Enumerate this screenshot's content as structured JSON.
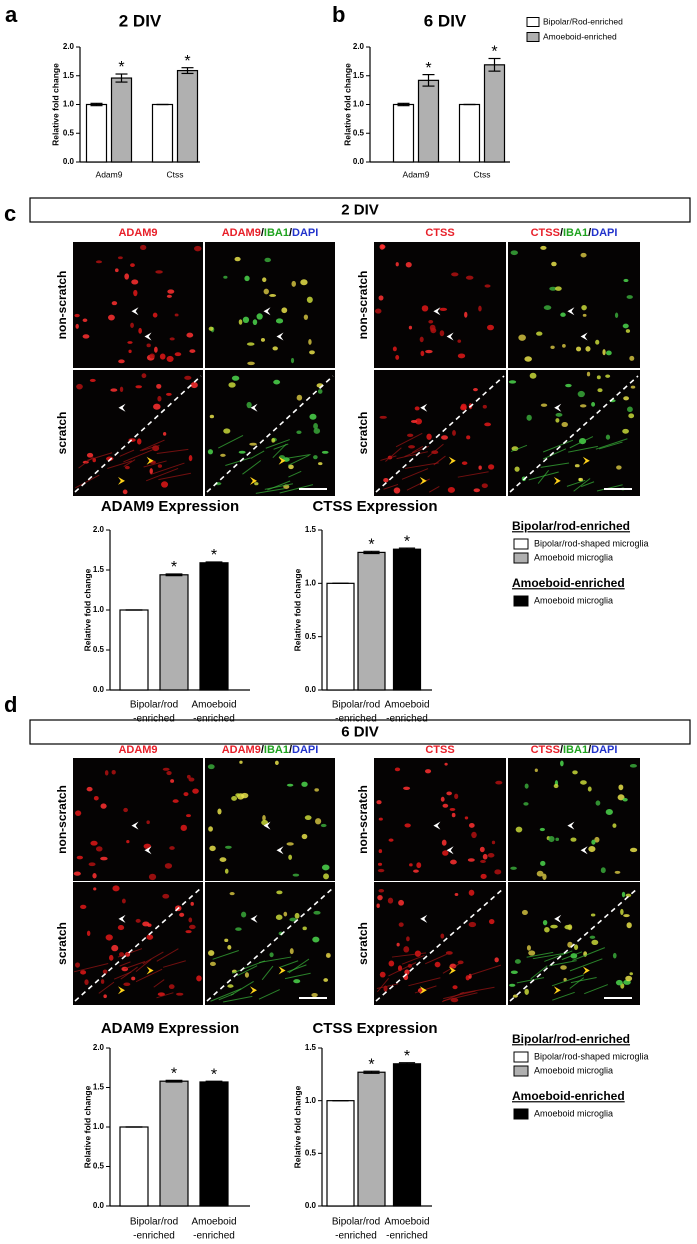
{
  "chart_data": [
    {
      "type": "bar",
      "letter": "a",
      "title": "2 DIV",
      "ylabel": "Relative fold change",
      "categories": [
        "Adam9",
        "Ctss"
      ],
      "series": [
        {
          "color": "#ffffff",
          "values": [
            1.0,
            1.0
          ],
          "errors": [
            0.02,
            0.0
          ],
          "significance": [
            null,
            null
          ]
        },
        {
          "color": "#b0b0b0",
          "values": [
            1.46,
            1.59
          ],
          "errors": [
            0.07,
            0.05
          ],
          "significance": [
            "*",
            "*"
          ]
        }
      ],
      "ylim": [
        0,
        2
      ],
      "yticks": [
        {
          "value": 0,
          "label": "0.0"
        },
        0.5,
        {
          "value": 1,
          "label": "1.0"
        },
        1.5,
        {
          "value": 2,
          "label": "2.0"
        }
      ]
    },
    {
      "type": "bar",
      "letter": "b",
      "title": "6 DIV",
      "ylabel": "Relative fold change",
      "categories": [
        "Adam9",
        "Ctss"
      ],
      "series": [
        {
          "name": "Bipolar/Rod-enriched",
          "color": "#ffffff",
          "values": [
            1.0,
            1.0
          ],
          "errors": [
            0.02,
            0.0
          ],
          "significance": [
            null,
            null
          ]
        },
        {
          "name": "Amoeboid-enriched",
          "color": "#b0b0b0",
          "values": [
            1.42,
            1.69
          ],
          "errors": [
            0.1,
            0.11
          ],
          "significance": [
            "*",
            "*"
          ]
        }
      ],
      "ylim": [
        0,
        2
      ],
      "yticks": [
        {
          "value": 0,
          "label": "0.0"
        },
        0.5,
        {
          "value": 1,
          "label": "1.0"
        },
        1.5,
        {
          "value": 2,
          "label": "2.0"
        }
      ]
    },
    {
      "type": "bar",
      "title": "ADAM9 Expression",
      "ylabel": "Relative fold change",
      "categories": [
        [
          "Bipolar/rod",
          "-enriched"
        ],
        [
          "Amoeboid",
          "-enriched"
        ]
      ],
      "series": [
        {
          "color": "#ffffff",
          "values": [
            1.0,
            null
          ],
          "errors": [
            0.0,
            null
          ],
          "significance": [
            null,
            null
          ]
        },
        {
          "color": "#b0b0b0",
          "values": [
            1.44,
            null
          ],
          "errors": [
            0.01,
            null
          ],
          "significance": [
            "*",
            null
          ]
        },
        {
          "color": "#000000",
          "values": [
            null,
            1.59
          ],
          "errors": [
            null,
            0.01
          ],
          "significance": [
            null,
            "*"
          ]
        }
      ],
      "ylim": [
        0,
        2
      ],
      "yticks": [
        {
          "value": 0,
          "label": "0.0"
        },
        0.5,
        {
          "value": 1,
          "label": "1.0"
        },
        1.5,
        {
          "value": 2,
          "label": "2.0"
        }
      ]
    },
    {
      "type": "bar",
      "title": "CTSS Expression",
      "ylabel": "Relative fold change",
      "categories": [
        [
          "Bipolar/rod",
          "-enriched"
        ],
        [
          "Amoeboid",
          "-enriched"
        ]
      ],
      "series": [
        {
          "name": "Bipolar/rod-shaped microglia",
          "color": "#ffffff",
          "values": [
            1.0,
            null
          ],
          "errors": [
            0.0,
            null
          ],
          "significance": [
            null,
            null
          ]
        },
        {
          "name": "Amoeboid microglia",
          "color": "#b0b0b0",
          "values": [
            1.29,
            null
          ],
          "errors": [
            0.01,
            null
          ],
          "significance": [
            "*",
            null
          ]
        },
        {
          "name": "Amoeboid microglia",
          "color": "#000000",
          "values": [
            null,
            1.32
          ],
          "errors": [
            null,
            0.01
          ],
          "significance": [
            null,
            "*"
          ]
        }
      ],
      "legend_groups": [
        {
          "title": "Bipolar/rod-enriched",
          "series": [
            0,
            1
          ]
        },
        {
          "title": "Amoeboid-enriched",
          "series": [
            2
          ]
        }
      ],
      "ylim": [
        0,
        1.5
      ],
      "yticks": [
        {
          "value": 0,
          "label": "0.0"
        },
        0.5,
        {
          "value": 1,
          "label": "1.0"
        },
        1.5
      ]
    },
    {
      "type": "bar",
      "title": "ADAM9 Expression",
      "ylabel": "Relative fold change",
      "categories": [
        [
          "Bipolar/rod",
          "-enriched"
        ],
        [
          "Amoeboid",
          "-enriched"
        ]
      ],
      "series": [
        {
          "color": "#ffffff",
          "values": [
            1.0,
            null
          ],
          "errors": [
            0.0,
            null
          ],
          "significance": [
            null,
            null
          ]
        },
        {
          "color": "#b0b0b0",
          "values": [
            1.58,
            null
          ],
          "errors": [
            0.01,
            null
          ],
          "significance": [
            "*",
            null
          ]
        },
        {
          "color": "#000000",
          "values": [
            null,
            1.57
          ],
          "errors": [
            null,
            0.01
          ],
          "significance": [
            null,
            "*"
          ]
        }
      ],
      "ylim": [
        0,
        2
      ],
      "yticks": [
        {
          "value": 0,
          "label": "0.0"
        },
        0.5,
        {
          "value": 1,
          "label": "1.0"
        },
        1.5,
        {
          "value": 2,
          "label": "2.0"
        }
      ]
    },
    {
      "type": "bar",
      "title": "CTSS Expression",
      "ylabel": "Relative fold change",
      "categories": [
        [
          "Bipolar/rod",
          "-enriched"
        ],
        [
          "Amoeboid",
          "-enriched"
        ]
      ],
      "series": [
        {
          "name": "Bipolar/rod-shaped microglia",
          "color": "#ffffff",
          "values": [
            1.0,
            null
          ],
          "errors": [
            0.0,
            null
          ],
          "significance": [
            null,
            null
          ]
        },
        {
          "name": "Amoeboid microglia",
          "color": "#b0b0b0",
          "values": [
            1.27,
            null
          ],
          "errors": [
            0.01,
            null
          ],
          "significance": [
            "*",
            null
          ]
        },
        {
          "name": "Amoeboid microglia",
          "color": "#000000",
          "values": [
            null,
            1.35
          ],
          "errors": [
            null,
            0.01
          ],
          "significance": [
            null,
            "*"
          ]
        }
      ],
      "legend_groups": [
        {
          "title": "Bipolar/rod-enriched",
          "series": [
            0,
            1
          ]
        },
        {
          "title": "Amoeboid-enriched",
          "series": [
            2
          ]
        }
      ],
      "ylim": [
        0,
        1.5
      ],
      "yticks": [
        {
          "value": 0,
          "label": "0.0"
        },
        0.5,
        {
          "value": 1,
          "label": "1.0"
        },
        1.5
      ]
    }
  ],
  "image_panels": [
    {
      "letter": "c",
      "header": "2 DIV",
      "rows": [
        "non-scratch",
        "scratch"
      ],
      "columns": [
        [
          {
            "text": "ADAM9",
            "color": "#e8202a"
          }
        ],
        [
          {
            "text": "ADAM9",
            "color": "#e8202a"
          },
          {
            "text": "/",
            "color": "#000000"
          },
          {
            "text": "IBA1",
            "color": "#1fa31f"
          },
          {
            "text": "/",
            "color": "#000000"
          },
          {
            "text": "DAPI",
            "color": "#2233cc"
          }
        ],
        [
          {
            "text": "CTSS",
            "color": "#e8202a"
          }
        ],
        [
          {
            "text": "CTSS",
            "color": "#e8202a"
          },
          {
            "text": "/",
            "color": "#000000"
          },
          {
            "text": "IBA1",
            "color": "#1fa31f"
          },
          {
            "text": "/",
            "color": "#000000"
          },
          {
            "text": "DAPI",
            "color": "#2233cc"
          }
        ]
      ]
    },
    {
      "letter": "d",
      "header": "6 DIV",
      "rows": [
        "non-scratch",
        "scratch"
      ],
      "columns": [
        [
          {
            "text": "ADAM9",
            "color": "#e8202a"
          }
        ],
        [
          {
            "text": "ADAM9",
            "color": "#e8202a"
          },
          {
            "text": "/",
            "color": "#000000"
          },
          {
            "text": "IBA1",
            "color": "#1fa31f"
          },
          {
            "text": "/",
            "color": "#000000"
          },
          {
            "text": "DAPI",
            "color": "#2233cc"
          }
        ],
        [
          {
            "text": "CTSS",
            "color": "#e8202a"
          }
        ],
        [
          {
            "text": "CTSS",
            "color": "#e8202a"
          },
          {
            "text": "/",
            "color": "#000000"
          },
          {
            "text": "IBA1",
            "color": "#1fa31f"
          },
          {
            "text": "/",
            "color": "#000000"
          },
          {
            "text": "DAPI",
            "color": "#2233cc"
          }
        ]
      ]
    }
  ]
}
